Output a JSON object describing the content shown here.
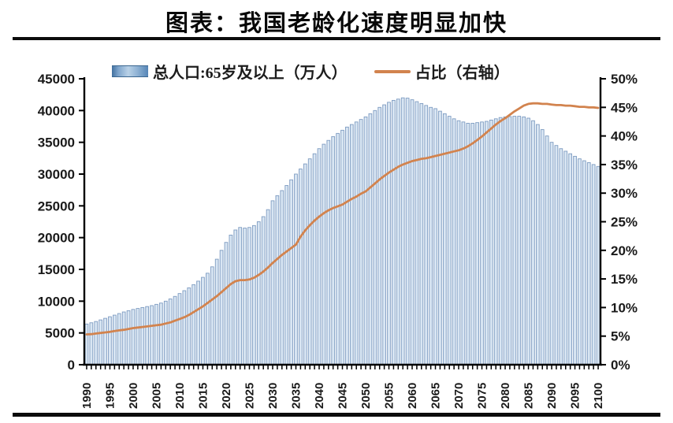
{
  "title": "图表：我国老龄化速度明显加快",
  "legend": {
    "bar_label": "总人口:65岁及以上（万人）",
    "line_label": "占比（右轴）"
  },
  "colors": {
    "bar_fill": "#d9e6f3",
    "bar_stroke": "#7d9bc1",
    "line": "#d2834e",
    "axis": "#000000",
    "axis_text": "#1a1a1a",
    "rule": "#0b0b0b"
  },
  "chart_data": {
    "type": "bar",
    "subtype": "bar-line-combo",
    "title": "图表：我国老龄化速度明显加快",
    "xlabel": "",
    "ylabel_left": "总人口:65岁及以上（万人）",
    "ylabel_right": "占比（右轴）",
    "grid": false,
    "legend_position": "top",
    "left_axis": {
      "min": 0,
      "max": 45000,
      "step": 5000,
      "tick_labels": [
        "0",
        "5000",
        "10000",
        "15000",
        "20000",
        "25000",
        "30000",
        "35000",
        "40000",
        "45000"
      ]
    },
    "right_axis": {
      "min": 0,
      "max": 50,
      "step": 5,
      "tick_labels": [
        "0%",
        "5%",
        "10%",
        "15%",
        "20%",
        "25%",
        "30%",
        "35%",
        "40%",
        "45%",
        "50%"
      ]
    },
    "x_tick_labels": [
      "1990",
      "1995",
      "2000",
      "2005",
      "2010",
      "2015",
      "2020",
      "2025",
      "2030",
      "2035",
      "2040",
      "2045",
      "2050",
      "2055",
      "2060",
      "2065",
      "2070",
      "2075",
      "2080",
      "2085",
      "2090",
      "2095",
      "2100"
    ],
    "years": [
      1990,
      1991,
      1992,
      1993,
      1994,
      1995,
      1996,
      1997,
      1998,
      1999,
      2000,
      2001,
      2002,
      2003,
      2004,
      2005,
      2006,
      2007,
      2008,
      2009,
      2010,
      2011,
      2012,
      2013,
      2014,
      2015,
      2016,
      2017,
      2018,
      2019,
      2020,
      2021,
      2022,
      2023,
      2024,
      2025,
      2026,
      2027,
      2028,
      2029,
      2030,
      2031,
      2032,
      2033,
      2034,
      2035,
      2036,
      2037,
      2038,
      2039,
      2040,
      2041,
      2042,
      2043,
      2044,
      2045,
      2046,
      2047,
      2048,
      2049,
      2050,
      2051,
      2052,
      2053,
      2054,
      2055,
      2056,
      2057,
      2058,
      2059,
      2060,
      2061,
      2062,
      2063,
      2064,
      2065,
      2066,
      2067,
      2068,
      2069,
      2070,
      2071,
      2072,
      2073,
      2074,
      2075,
      2076,
      2077,
      2078,
      2079,
      2080,
      2081,
      2082,
      2083,
      2084,
      2085,
      2086,
      2087,
      2088,
      2089,
      2090,
      2091,
      2092,
      2093,
      2094,
      2095,
      2096,
      2097,
      2098,
      2099,
      2100
    ],
    "series": [
      {
        "name": "总人口:65岁及以上（万人）",
        "type": "bar",
        "axis": "left",
        "values": [
          6400,
          6600,
          6800,
          7050,
          7300,
          7550,
          7800,
          8050,
          8300,
          8500,
          8700,
          8850,
          9000,
          9150,
          9300,
          9500,
          9700,
          10000,
          10350,
          10750,
          11200,
          11650,
          12100,
          12600,
          13150,
          13750,
          14400,
          15400,
          16600,
          18000,
          19250,
          20400,
          21200,
          21600,
          21500,
          21600,
          21900,
          22500,
          23300,
          24400,
          25800,
          26600,
          27400,
          28200,
          29100,
          30000,
          30800,
          31600,
          32400,
          33200,
          34000,
          34700,
          35300,
          35900,
          36400,
          36900,
          37400,
          37800,
          38200,
          38600,
          39000,
          39500,
          40000,
          40500,
          40900,
          41300,
          41600,
          41800,
          42000,
          41950,
          41700,
          41400,
          41100,
          40800,
          40500,
          40300,
          39900,
          39500,
          39100,
          38700,
          38400,
          38200,
          38000,
          38000,
          38100,
          38200,
          38300,
          38500,
          38700,
          38900,
          39000,
          39050,
          39100,
          39100,
          39000,
          38800,
          38400,
          37800,
          37000,
          36000,
          35000,
          34500,
          34000,
          33600,
          33200,
          32800,
          32400,
          32100,
          31800,
          31500,
          31200
        ]
      },
      {
        "name": "占比（右轴）",
        "type": "line",
        "axis": "right",
        "values": [
          5.3,
          5.35,
          5.45,
          5.55,
          5.65,
          5.75,
          5.9,
          6.0,
          6.1,
          6.25,
          6.4,
          6.5,
          6.6,
          6.7,
          6.8,
          6.9,
          7.0,
          7.2,
          7.4,
          7.7,
          8.0,
          8.3,
          8.7,
          9.2,
          9.7,
          10.2,
          10.8,
          11.4,
          12.0,
          12.7,
          13.4,
          14.1,
          14.6,
          14.8,
          14.8,
          14.9,
          15.2,
          15.7,
          16.3,
          17.0,
          17.8,
          18.5,
          19.2,
          19.8,
          20.4,
          21.0,
          22.4,
          23.5,
          24.4,
          25.2,
          25.9,
          26.5,
          27.0,
          27.4,
          27.7,
          28.0,
          28.5,
          29.0,
          29.4,
          29.9,
          30.3,
          31.0,
          31.7,
          32.4,
          33.0,
          33.6,
          34.1,
          34.6,
          35.0,
          35.3,
          35.6,
          35.8,
          36.0,
          36.1,
          36.3,
          36.5,
          36.7,
          36.9,
          37.1,
          37.3,
          37.5,
          37.8,
          38.2,
          38.7,
          39.3,
          39.9,
          40.6,
          41.3,
          42.0,
          42.6,
          43.1,
          43.7,
          44.3,
          44.8,
          45.3,
          45.6,
          45.7,
          45.7,
          45.6,
          45.6,
          45.5,
          45.4,
          45.4,
          45.3,
          45.3,
          45.2,
          45.1,
          45.1,
          45.0,
          45.0,
          44.9
        ]
      }
    ]
  }
}
